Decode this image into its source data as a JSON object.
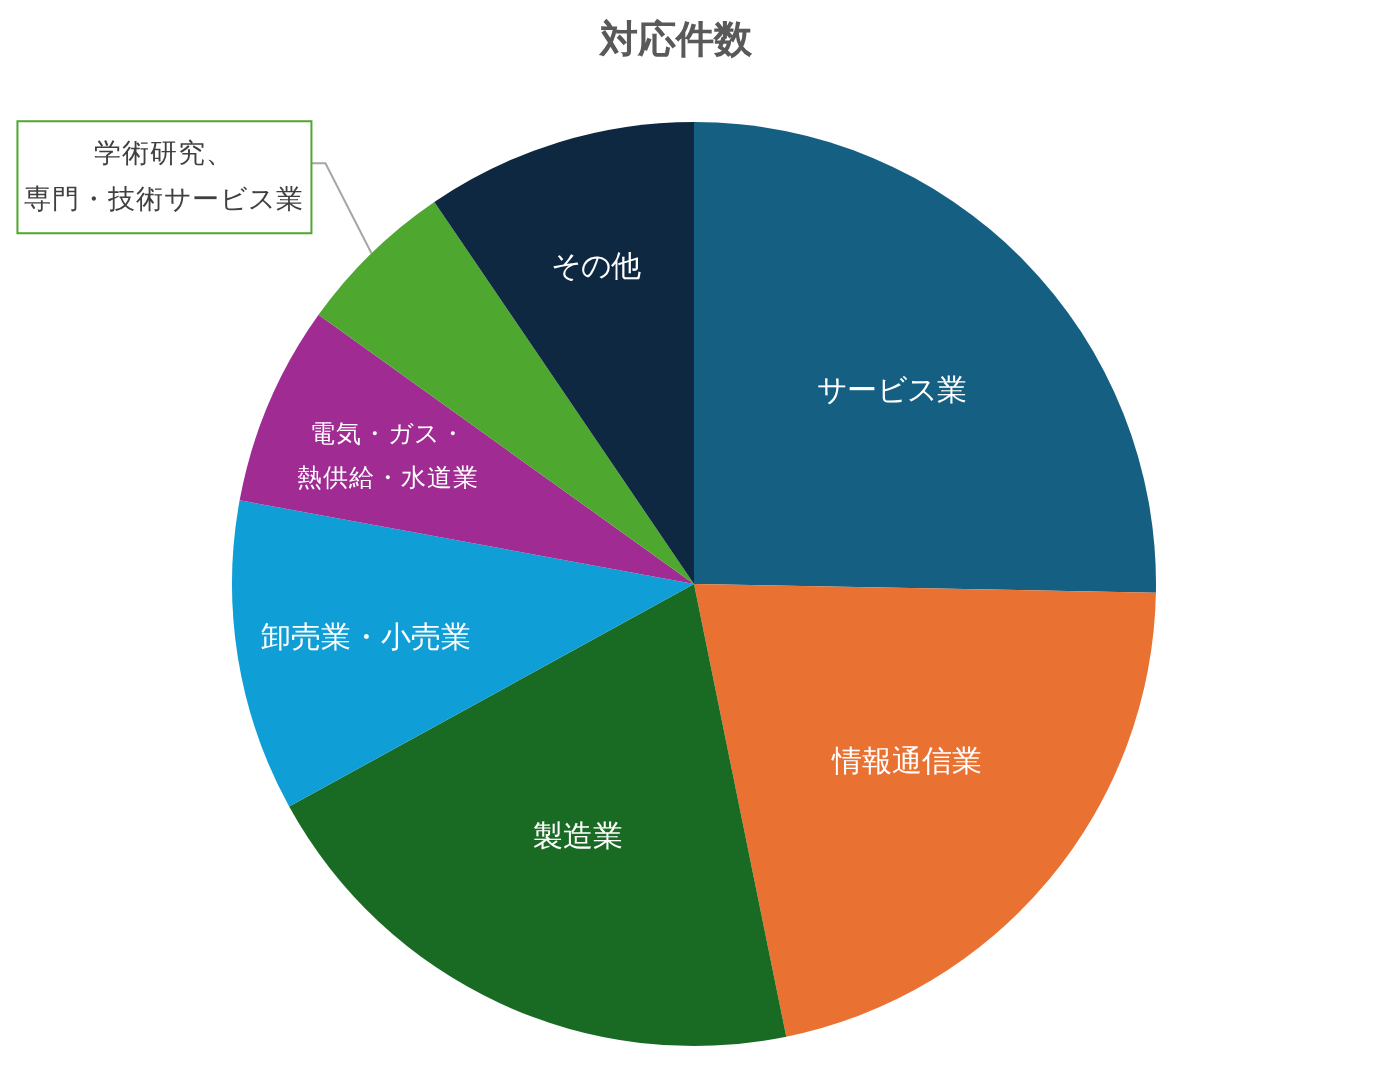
{
  "chart_data": {
    "type": "pie",
    "title": "対応件数",
    "categories": [
      "サービス業",
      "情報通信業",
      "製造業",
      "卸売業・小売業",
      "電気・ガス・熱供給・水道業",
      "学術研究、専門・技術サービス業",
      "その他"
    ],
    "values": [
      25.3,
      21.5,
      20.2,
      10.9,
      7.0,
      5.6,
      9.5
    ],
    "colors": [
      "#156082",
      "#e97132",
      "#196b24",
      "#0f9ed5",
      "#a02b93",
      "#4ea72e",
      "#0e2841"
    ]
  }
}
